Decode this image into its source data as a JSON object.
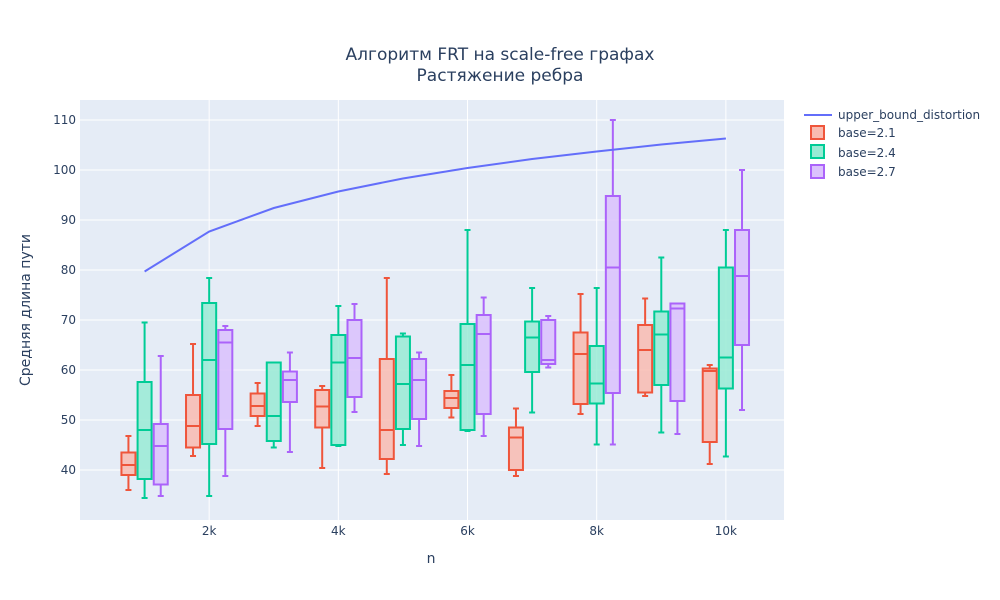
{
  "chart_data": {
    "type": "box",
    "title": "Алгоритм FRT на scale-free графах",
    "subtitle": "Растяжение ребра",
    "xlabel": "n",
    "ylabel": "Средняя длина пути",
    "xlim": [
      0,
      10900
    ],
    "ylim": [
      30,
      114
    ],
    "xticks": [
      2000,
      4000,
      6000,
      8000,
      10000
    ],
    "xtick_labels": [
      "2k",
      "4k",
      "6k",
      "8k",
      "10k"
    ],
    "yticks": [
      40,
      50,
      60,
      70,
      80,
      90,
      100,
      110
    ],
    "grid": true,
    "legend_position": "top-right",
    "line_series": {
      "name": "upper_bound_distortion",
      "color": "#636efa",
      "x": [
        1000,
        2000,
        3000,
        4000,
        5000,
        6000,
        7000,
        8000,
        9000,
        10000
      ],
      "y": [
        79.7,
        87.7,
        92.4,
        95.7,
        98.3,
        100.4,
        102.2,
        103.7,
        105.1,
        106.3
      ]
    },
    "box_series": [
      {
        "name": "base=2.1",
        "color": "#ef553b",
        "fill": "#f9bbb0",
        "offset": -250,
        "boxes": [
          {
            "x": 1000,
            "min": 36.0,
            "q1": 39.0,
            "median": 41.0,
            "q3": 43.5,
            "max": 46.8
          },
          {
            "x": 2000,
            "min": 42.8,
            "q1": 44.5,
            "median": 48.8,
            "q3": 55.0,
            "max": 65.2
          },
          {
            "x": 3000,
            "min": 48.8,
            "q1": 50.8,
            "median": 52.8,
            "q3": 55.3,
            "max": 57.4
          },
          {
            "x": 4000,
            "min": 40.4,
            "q1": 48.5,
            "median": 52.7,
            "q3": 56.0,
            "max": 56.8
          },
          {
            "x": 5000,
            "min": 39.2,
            "q1": 42.2,
            "median": 48.0,
            "q3": 62.2,
            "max": 78.4
          },
          {
            "x": 6000,
            "min": 50.5,
            "q1": 52.4,
            "median": 54.4,
            "q3": 55.8,
            "max": 59.0
          },
          {
            "x": 7000,
            "min": 38.8,
            "q1": 40.0,
            "median": 46.5,
            "q3": 48.5,
            "max": 52.3
          },
          {
            "x": 8000,
            "min": 51.2,
            "q1": 53.2,
            "median": 63.2,
            "q3": 67.5,
            "max": 75.2
          },
          {
            "x": 9000,
            "min": 54.8,
            "q1": 55.5,
            "median": 64.0,
            "q3": 69.0,
            "max": 74.3
          },
          {
            "x": 10000,
            "min": 41.2,
            "q1": 45.6,
            "median": 59.8,
            "q3": 60.3,
            "max": 61.0
          }
        ]
      },
      {
        "name": "base=2.4",
        "color": "#00cc96",
        "fill": "#99ebd5",
        "offset": 0,
        "boxes": [
          {
            "x": 1000,
            "min": 34.4,
            "q1": 38.2,
            "median": 48.0,
            "q3": 57.6,
            "max": 69.5
          },
          {
            "x": 2000,
            "min": 34.8,
            "q1": 45.2,
            "median": 62.0,
            "q3": 73.4,
            "max": 78.4
          },
          {
            "x": 3000,
            "min": 44.5,
            "q1": 45.8,
            "median": 50.8,
            "q3": 61.5,
            "max": 61.5
          },
          {
            "x": 4000,
            "min": 44.8,
            "q1": 45.0,
            "median": 61.5,
            "q3": 67.0,
            "max": 72.8
          },
          {
            "x": 5000,
            "min": 45.0,
            "q1": 48.2,
            "median": 57.2,
            "q3": 66.7,
            "max": 67.3
          },
          {
            "x": 6000,
            "min": 47.8,
            "q1": 48.0,
            "median": 61.0,
            "q3": 69.2,
            "max": 88.0
          },
          {
            "x": 7000,
            "min": 51.5,
            "q1": 59.6,
            "median": 66.5,
            "q3": 69.7,
            "max": 76.4
          },
          {
            "x": 8000,
            "min": 45.1,
            "q1": 53.3,
            "median": 57.3,
            "q3": 64.8,
            "max": 76.4
          },
          {
            "x": 9000,
            "min": 47.5,
            "q1": 57.0,
            "median": 67.1,
            "q3": 71.7,
            "max": 82.5
          },
          {
            "x": 10000,
            "min": 42.7,
            "q1": 56.3,
            "median": 62.5,
            "q3": 80.5,
            "max": 88.0
          }
        ]
      },
      {
        "name": "base=2.7",
        "color": "#ab63fa",
        "fill": "#dbc1fd",
        "offset": 250,
        "boxes": [
          {
            "x": 1000,
            "min": 34.8,
            "q1": 37.1,
            "median": 44.8,
            "q3": 49.2,
            "max": 62.8
          },
          {
            "x": 2000,
            "min": 38.8,
            "q1": 48.2,
            "median": 65.5,
            "q3": 68.0,
            "max": 68.8
          },
          {
            "x": 3000,
            "min": 43.6,
            "q1": 53.6,
            "median": 58.0,
            "q3": 59.7,
            "max": 63.5
          },
          {
            "x": 4000,
            "min": 51.6,
            "q1": 54.6,
            "median": 62.4,
            "q3": 70.0,
            "max": 73.2
          },
          {
            "x": 5000,
            "min": 44.8,
            "q1": 50.2,
            "median": 58.0,
            "q3": 62.2,
            "max": 63.5
          },
          {
            "x": 6000,
            "min": 46.8,
            "q1": 51.2,
            "median": 67.2,
            "q3": 71.0,
            "max": 74.5
          },
          {
            "x": 7000,
            "min": 60.5,
            "q1": 61.2,
            "median": 62.0,
            "q3": 70.0,
            "max": 70.8
          },
          {
            "x": 8000,
            "min": 45.1,
            "q1": 55.4,
            "median": 80.5,
            "q3": 94.8,
            "max": 110.0
          },
          {
            "x": 9000,
            "min": 47.2,
            "q1": 53.8,
            "median": 72.3,
            "q3": 73.3,
            "max": 73.3
          },
          {
            "x": 10000,
            "min": 52.0,
            "q1": 65.0,
            "median": 78.8,
            "q3": 88.0,
            "max": 100.0
          }
        ]
      }
    ]
  }
}
